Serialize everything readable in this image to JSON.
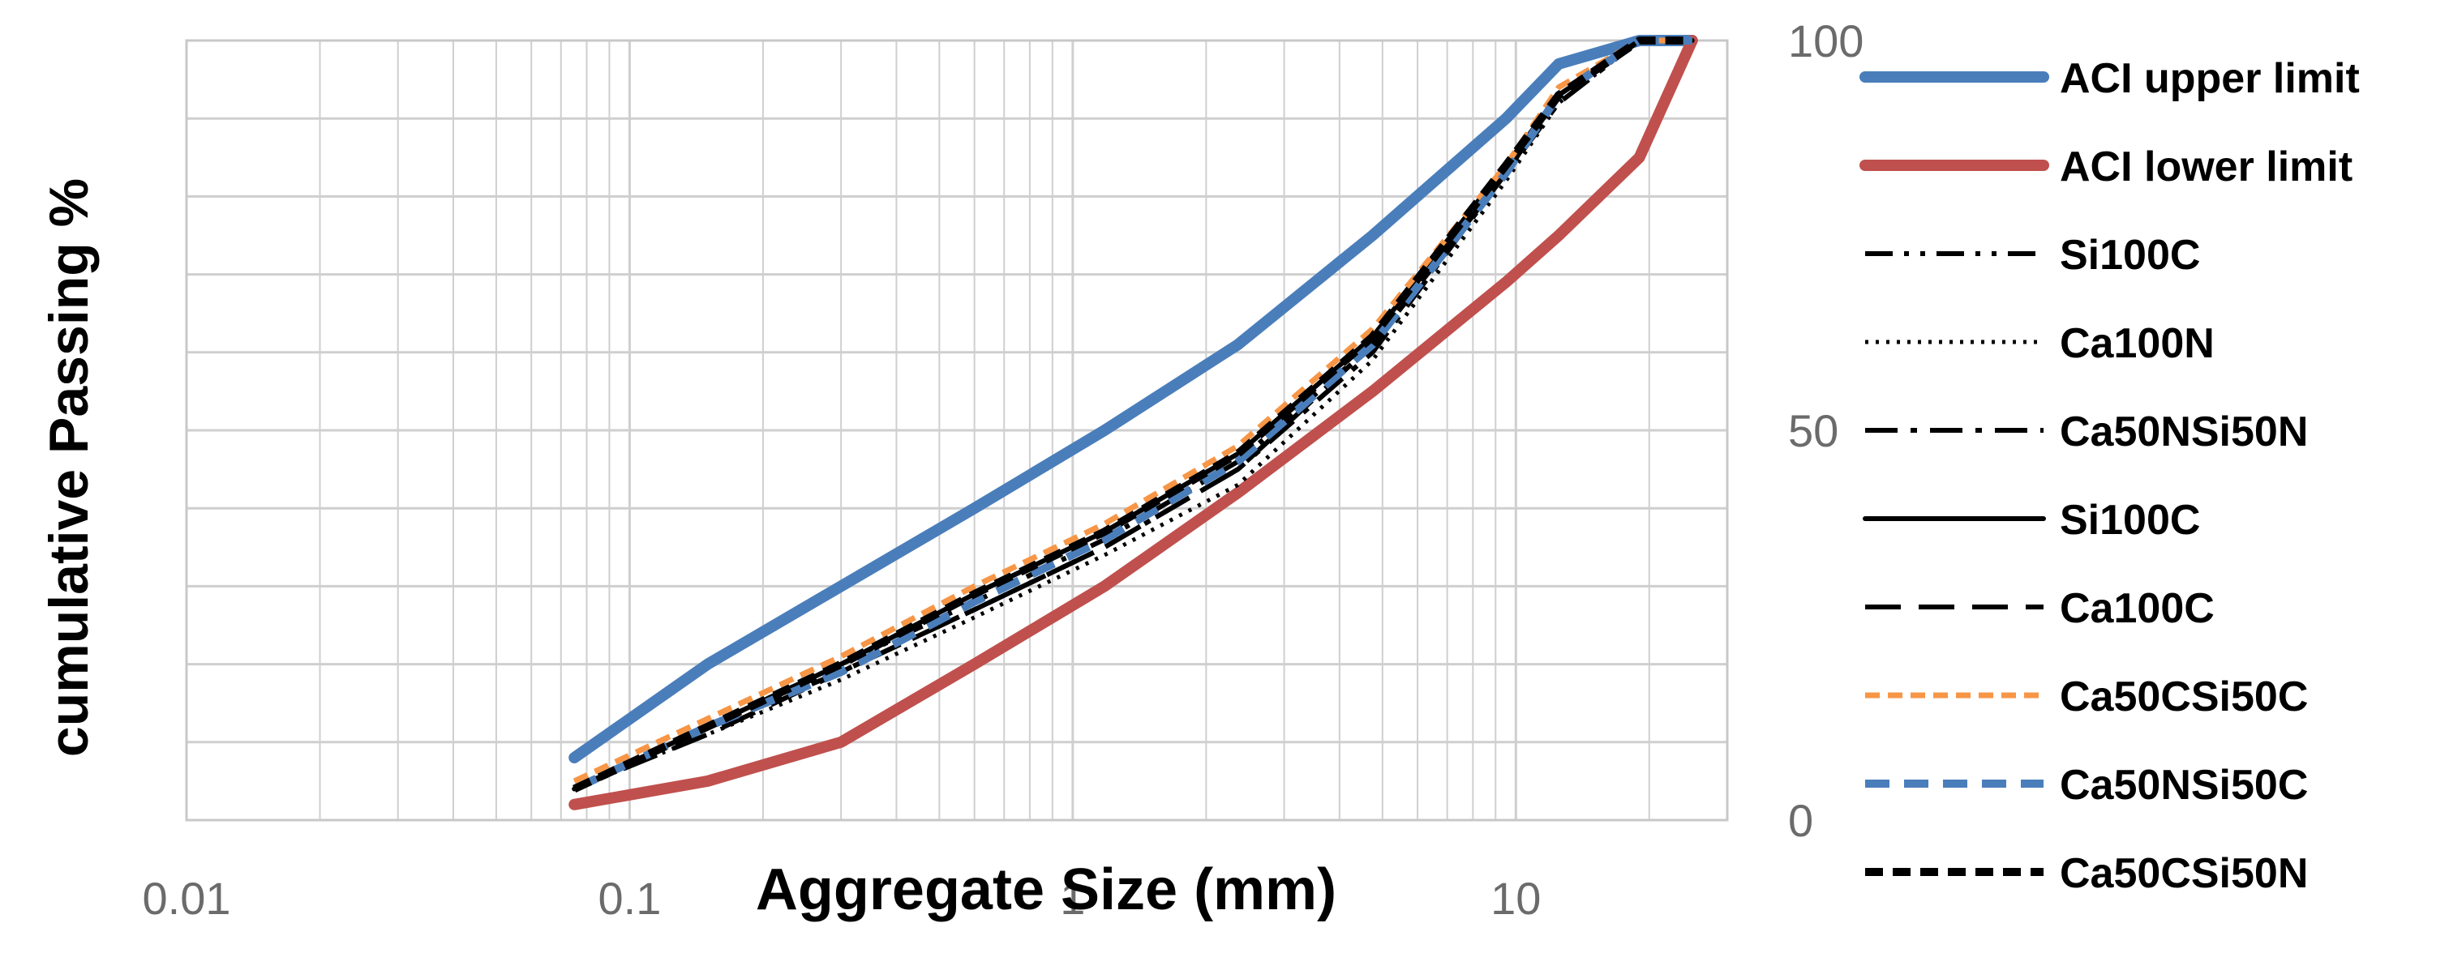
{
  "chart_data": {
    "type": "line",
    "xscale": "log",
    "xlim": [
      0.01,
      30
    ],
    "ylim": [
      0,
      100
    ],
    "grid": true,
    "xlabel": "Aggregate Size (mm)",
    "ylabel": "cumulative Passing %",
    "xticks": [
      {
        "value": 0.01,
        "label": "0.01"
      },
      {
        "value": 0.1,
        "label": "0.1"
      },
      {
        "value": 1,
        "label": "1"
      },
      {
        "value": 10,
        "label": "10"
      }
    ],
    "yticks": [
      {
        "value": 0,
        "label": "0"
      },
      {
        "value": 50,
        "label": "50"
      },
      {
        "value": 100,
        "label": "100"
      }
    ],
    "legend_position": "right",
    "series": [
      {
        "name": "ACI upper limit",
        "color": "#4a7ebb",
        "style": "solid-thick",
        "x": [
          0.075,
          0.15,
          0.3,
          0.6,
          1.18,
          2.36,
          4.75,
          9.5,
          12.5,
          19,
          25
        ],
        "y": [
          8,
          20,
          30,
          40,
          50,
          61,
          75,
          90,
          97,
          100,
          100
        ]
      },
      {
        "name": "ACI lower limit",
        "color": "#c0504d",
        "style": "solid-thick",
        "x": [
          0.075,
          0.15,
          0.3,
          0.6,
          1.18,
          2.36,
          4.75,
          9.5,
          12.5,
          19,
          25
        ],
        "y": [
          2,
          5,
          10,
          20,
          30,
          42,
          55,
          69,
          75,
          85,
          100
        ]
      },
      {
        "name": "Si100C",
        "color": "#000000",
        "style": "dash-dot-dot",
        "x": [
          0.075,
          0.15,
          0.3,
          0.6,
          1.18,
          2.36,
          4.75,
          9.5,
          12.5,
          19,
          25
        ],
        "y": [
          4,
          12,
          20,
          28,
          36,
          46,
          61,
          83,
          93,
          100,
          100
        ]
      },
      {
        "name": "Ca100N",
        "color": "#000000",
        "style": "dotted",
        "x": [
          0.075,
          0.15,
          0.3,
          0.6,
          1.18,
          2.36,
          4.75,
          9.5,
          12.5,
          19,
          25
        ],
        "y": [
          4,
          11,
          18,
          26,
          34,
          43,
          59,
          82,
          92,
          100,
          100
        ]
      },
      {
        "name": "Ca50NSi50N",
        "color": "#000000",
        "style": "dash-dot",
        "x": [
          0.075,
          0.15,
          0.3,
          0.6,
          1.18,
          2.36,
          4.75,
          9.5,
          12.5,
          19,
          25
        ],
        "y": [
          4,
          12,
          19,
          27,
          35,
          45,
          60,
          83,
          92,
          100,
          100
        ]
      },
      {
        "name": "Si100C",
        "color": "#000000",
        "style": "solid",
        "x": [
          0.075,
          0.15,
          0.3,
          0.6,
          1.18,
          2.36,
          4.75,
          9.5,
          12.5,
          19,
          25
        ],
        "y": [
          4,
          12,
          20,
          29,
          37,
          47,
          62,
          84,
          93,
          100,
          100
        ]
      },
      {
        "name": "Ca100C",
        "color": "#000000",
        "style": "long-dash",
        "x": [
          0.075,
          0.15,
          0.3,
          0.6,
          1.18,
          2.36,
          4.75,
          9.5,
          12.5,
          19,
          25
        ],
        "y": [
          4,
          11,
          19,
          27,
          35,
          45,
          61,
          83,
          93,
          100,
          100
        ]
      },
      {
        "name": "Ca50CSi50C",
        "color": "#f79646",
        "style": "short-dash",
        "x": [
          0.075,
          0.15,
          0.3,
          0.6,
          1.18,
          2.36,
          4.75,
          9.5,
          12.5,
          19,
          25
        ],
        "y": [
          5,
          13,
          21,
          30,
          38,
          48,
          63,
          84,
          94,
          100,
          100
        ]
      },
      {
        "name": "Ca50NSi50C",
        "color": "#4a7ebb",
        "style": "dash",
        "x": [
          0.075,
          0.15,
          0.3,
          0.6,
          1.18,
          2.36,
          4.75,
          9.5,
          12.5,
          19,
          25
        ],
        "y": [
          4,
          12,
          19,
          28,
          36,
          46,
          61,
          83,
          93,
          100,
          100
        ]
      },
      {
        "name": "Ca50CSi50N",
        "color": "#000000",
        "style": "bold-dash",
        "x": [
          0.075,
          0.15,
          0.3,
          0.6,
          1.18,
          2.36,
          4.75,
          9.5,
          12.5,
          19,
          25
        ],
        "y": [
          4,
          12,
          20,
          29,
          37,
          47,
          62,
          84,
          93,
          100,
          100
        ]
      }
    ]
  }
}
